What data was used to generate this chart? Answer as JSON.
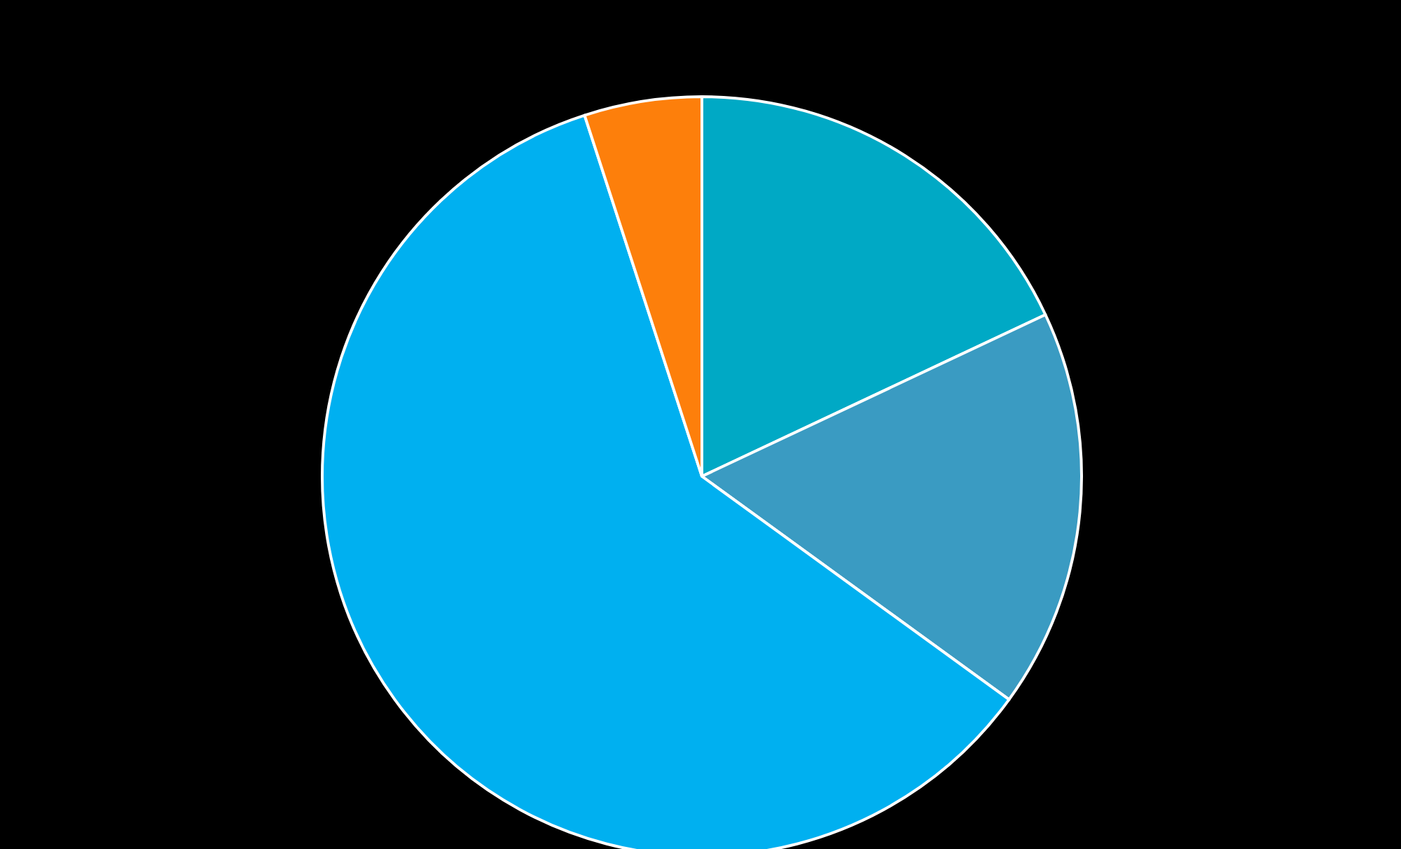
{
  "chart_data": {
    "type": "pie",
    "categories": [
      null,
      null,
      null,
      null
    ],
    "values": [
      18,
      17,
      60,
      5
    ],
    "colors": [
      "#00a9c5",
      "#3a9bc2",
      "#00b0f0",
      "#fd7f0b"
    ]
  }
}
